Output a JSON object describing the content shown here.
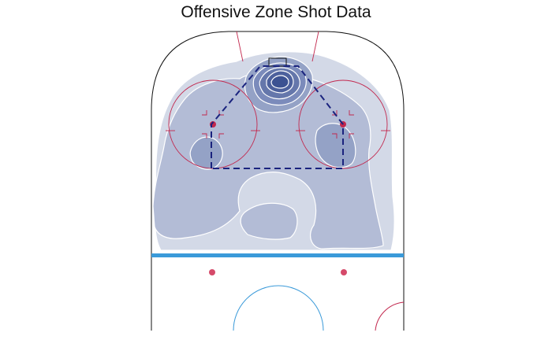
{
  "chart_data": {
    "type": "heatmap",
    "title": "Offensive Zone Shot Data",
    "xlabel": "",
    "ylabel": "",
    "grid": false,
    "legend": "none",
    "density_levels": [
      {
        "level": 1,
        "color": "#d3d9e7"
      },
      {
        "level": 2,
        "color": "#b3bcd6"
      },
      {
        "level": 3,
        "color": "#94a2c6"
      },
      {
        "level": 4,
        "color": "#7b8bbb"
      },
      {
        "level": 5,
        "color": "#6577ab"
      },
      {
        "level": 6,
        "color": "#4d619d"
      },
      {
        "level": 7,
        "color": "#3c5292"
      }
    ],
    "peak_region": "slot in front of the net",
    "secondary_regions": [
      "left faceoff circle",
      "right faceoff circle",
      "high slot near blue line"
    ]
  },
  "colors": {
    "rink_line": "#111111",
    "blue_line": "#3a9ad9",
    "red_line": "#c2274d",
    "faceoff_dot": "#d54a6a",
    "home_plate": "#1a237e",
    "contour": "#ffffff"
  }
}
